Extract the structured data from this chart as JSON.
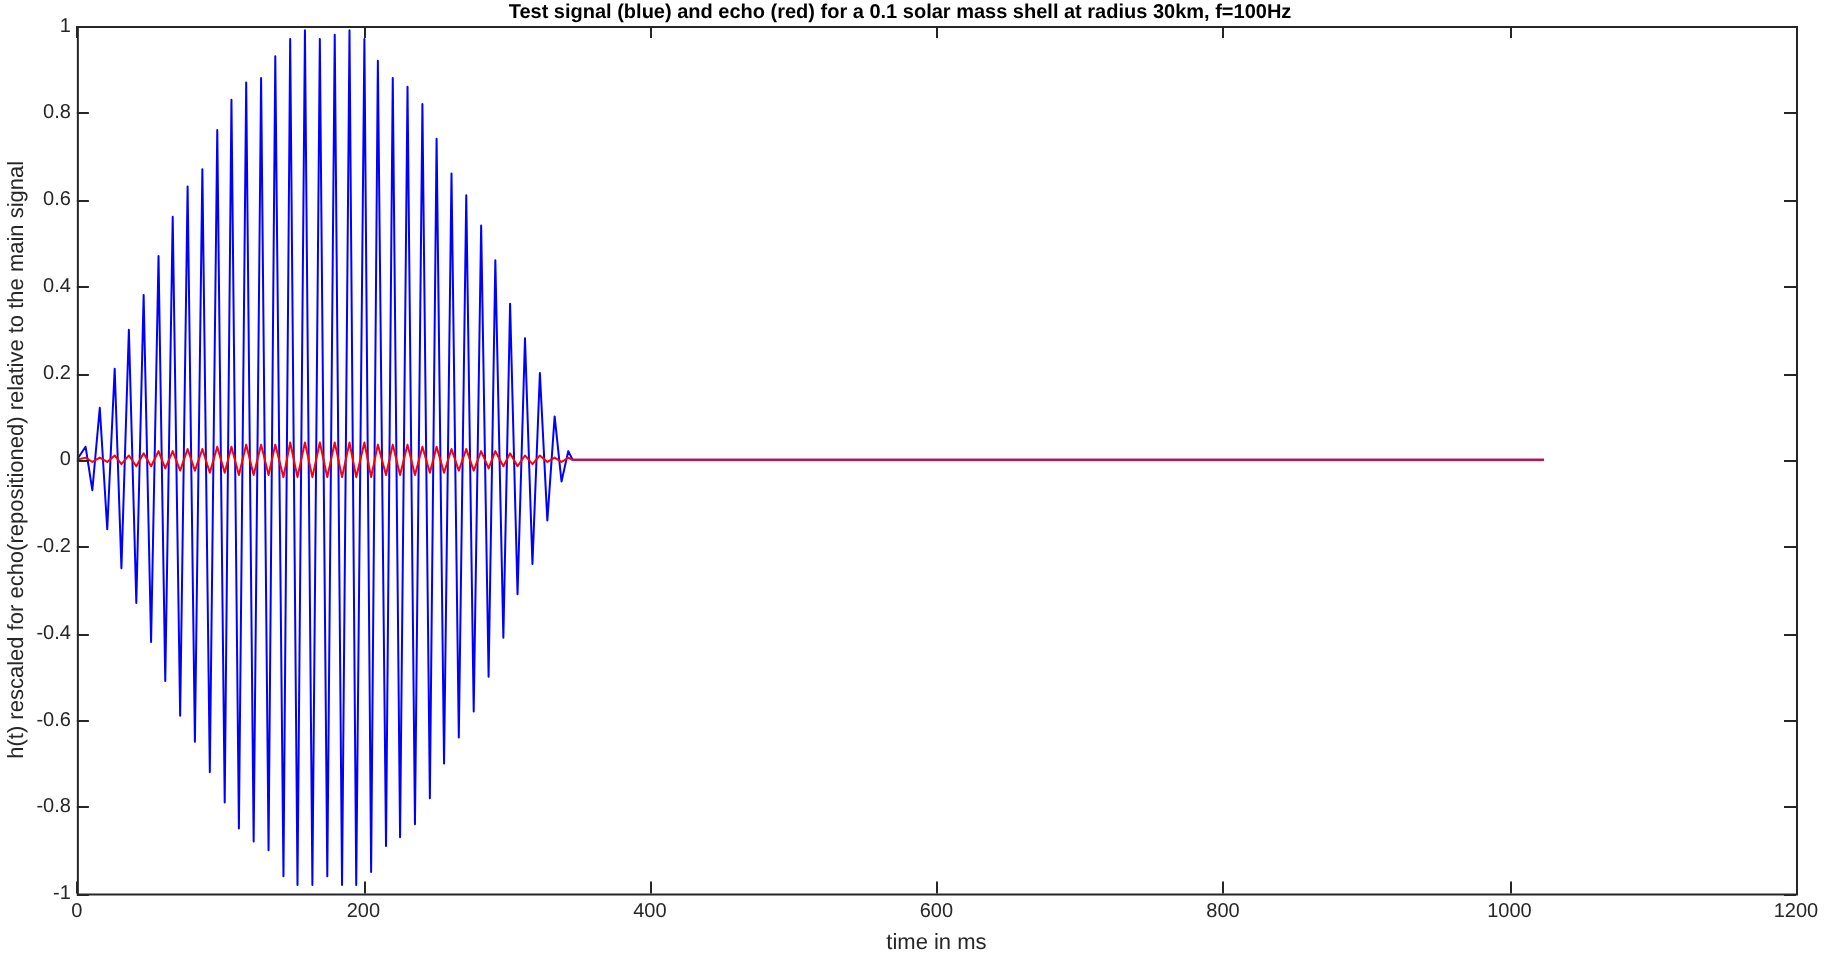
{
  "chart_data": {
    "type": "line",
    "title": "Test signal (blue) and echo (red) for a 0.1 solar mass shell at radius 30km, f=100Hz",
    "xlabel": "time in ms",
    "ylabel": "h(t) rescaled for echo(repositioned) relative to the main signal",
    "xlim": [
      0,
      1200
    ],
    "xticks": [
      0,
      200,
      400,
      600,
      800,
      1000,
      1200
    ],
    "ylim": [
      -1,
      1
    ],
    "yticks": [
      -1,
      -0.8,
      -0.6,
      -0.4,
      -0.2,
      0,
      0.2,
      0.4,
      0.6,
      0.8,
      1
    ],
    "grid": false,
    "legend": false,
    "marker": "none",
    "line_style": "solid",
    "series": [
      {
        "color": "#0000ff",
        "x": [
          0,
          6.1,
          10.8,
          16.0,
          21.2,
          26.4,
          31.1,
          36.3,
          41.5,
          46.6,
          51.8,
          57.0,
          61.7,
          66.9,
          72.1,
          77.3,
          82.4,
          87.6,
          92.8,
          98.0,
          103.2,
          107.9,
          113.1,
          118.2,
          123.4,
          128.6,
          133.8,
          138.5,
          144.2,
          148.9,
          154.0,
          159.2,
          164.4,
          169.6,
          174.8,
          180.0,
          185.1,
          190.3,
          195.0,
          200.7,
          205.4,
          210.1,
          215.8,
          220.5,
          225.6,
          230.8,
          236.0,
          241.2,
          246.4,
          251.1,
          256.3,
          261.5,
          266.6,
          271.8,
          277.0,
          282.2,
          287.4,
          292.1,
          297.7,
          302.4,
          307.6,
          312.8,
          318.0,
          323.2,
          328.4,
          333.5,
          338.3,
          343.0,
          346,
          1024
        ],
        "values": [
          0,
          0.03,
          -0.07,
          0.12,
          -0.16,
          0.21,
          -0.25,
          0.3,
          -0.33,
          0.38,
          -0.42,
          0.47,
          -0.51,
          0.56,
          -0.59,
          0.63,
          -0.65,
          0.67,
          -0.72,
          0.76,
          -0.79,
          0.83,
          -0.85,
          0.87,
          -0.88,
          0.88,
          -0.9,
          0.93,
          -0.96,
          0.97,
          -0.98,
          0.99,
          -0.98,
          0.97,
          -0.96,
          0.98,
          -0.98,
          0.99,
          -0.98,
          0.97,
          -0.95,
          0.92,
          -0.89,
          0.88,
          -0.87,
          0.86,
          -0.84,
          0.82,
          -0.78,
          0.74,
          -0.7,
          0.66,
          -0.64,
          0.61,
          -0.58,
          0.54,
          -0.5,
          0.46,
          -0.41,
          0.36,
          -0.31,
          0.28,
          -0.24,
          0.2,
          -0.14,
          0.1,
          -0.05,
          0.02,
          0,
          0
        ]
      },
      {
        "color": "#ff0000",
        "x": [
          0,
          6.1,
          10.8,
          16.0,
          21.2,
          26.4,
          31.1,
          36.3,
          41.5,
          46.6,
          51.8,
          57.0,
          61.7,
          66.9,
          72.1,
          77.3,
          82.4,
          87.6,
          92.8,
          98.0,
          103.2,
          107.9,
          113.1,
          118.2,
          123.4,
          128.6,
          133.8,
          138.5,
          144.2,
          148.9,
          154.0,
          159.2,
          164.4,
          169.6,
          174.8,
          180.0,
          185.1,
          190.3,
          195.0,
          200.7,
          205.4,
          210.1,
          215.8,
          220.5,
          225.6,
          230.8,
          236.0,
          241.2,
          246.4,
          251.1,
          256.3,
          261.5,
          266.6,
          271.8,
          277.0,
          282.2,
          287.4,
          292.1,
          297.7,
          302.4,
          307.6,
          312.8,
          318.0,
          323.2,
          328.4,
          333.5,
          338.3,
          343.0,
          346,
          1024
        ],
        "values": [
          0,
          0.005,
          -0.005,
          0.005,
          -0.005,
          0.01,
          -0.01,
          0.01,
          -0.015,
          0.015,
          -0.015,
          0.02,
          -0.02,
          0.02,
          -0.025,
          0.025,
          -0.025,
          0.025,
          -0.03,
          0.03,
          -0.03,
          0.03,
          -0.035,
          0.035,
          -0.035,
          0.035,
          -0.035,
          0.035,
          -0.04,
          0.04,
          -0.04,
          0.04,
          -0.04,
          0.04,
          -0.04,
          0.04,
          -0.04,
          0.04,
          -0.04,
          0.04,
          -0.04,
          0.035,
          -0.035,
          0.035,
          -0.035,
          0.035,
          -0.035,
          0.03,
          -0.03,
          0.03,
          -0.03,
          0.025,
          -0.025,
          0.025,
          -0.025,
          0.02,
          -0.02,
          0.02,
          -0.015,
          0.015,
          -0.015,
          0.01,
          -0.01,
          0.01,
          -0.005,
          0.005,
          -0.005,
          0.005,
          0,
          0
        ]
      }
    ]
  }
}
